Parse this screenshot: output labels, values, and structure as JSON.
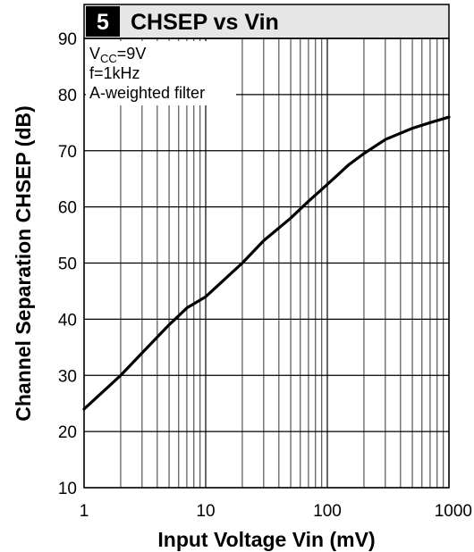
{
  "chart_data": {
    "type": "line",
    "number_badge": "5",
    "title": "CHSEP vs Vin",
    "xlabel": "Input Voltage Vin (mV)",
    "ylabel": "Channel Separation CHSEP (dB)",
    "x_scale": "log",
    "xlim": [
      1,
      1000
    ],
    "ylim": [
      10,
      90
    ],
    "x_ticks": [
      1,
      10,
      100,
      1000
    ],
    "x_tick_labels": [
      "1",
      "10",
      "100",
      "1000"
    ],
    "y_ticks": [
      10,
      20,
      30,
      40,
      50,
      60,
      70,
      80,
      90
    ],
    "y_tick_labels": [
      "10",
      "20",
      "30",
      "40",
      "50",
      "60",
      "70",
      "80",
      "90"
    ],
    "grid": true,
    "annotations": {
      "vcc_main": "V",
      "vcc_sub": "CC",
      "vcc_value": "=9V",
      "freq": "f=1kHz",
      "filter": "A-weighted filter"
    },
    "series": [
      {
        "x": [
          1,
          2,
          3,
          5,
          7,
          10,
          20,
          30,
          50,
          70,
          100,
          150,
          200,
          300,
          500,
          700,
          1000
        ],
        "y": [
          24,
          30,
          34,
          39,
          42,
          44,
          50,
          54,
          58,
          61,
          64,
          67.5,
          69.5,
          72,
          74,
          75,
          76
        ]
      }
    ],
    "colors": {
      "line": "#000000",
      "grid": "#000000",
      "title_bg": "#e6e6e6",
      "badge_bg": "#000000"
    }
  }
}
